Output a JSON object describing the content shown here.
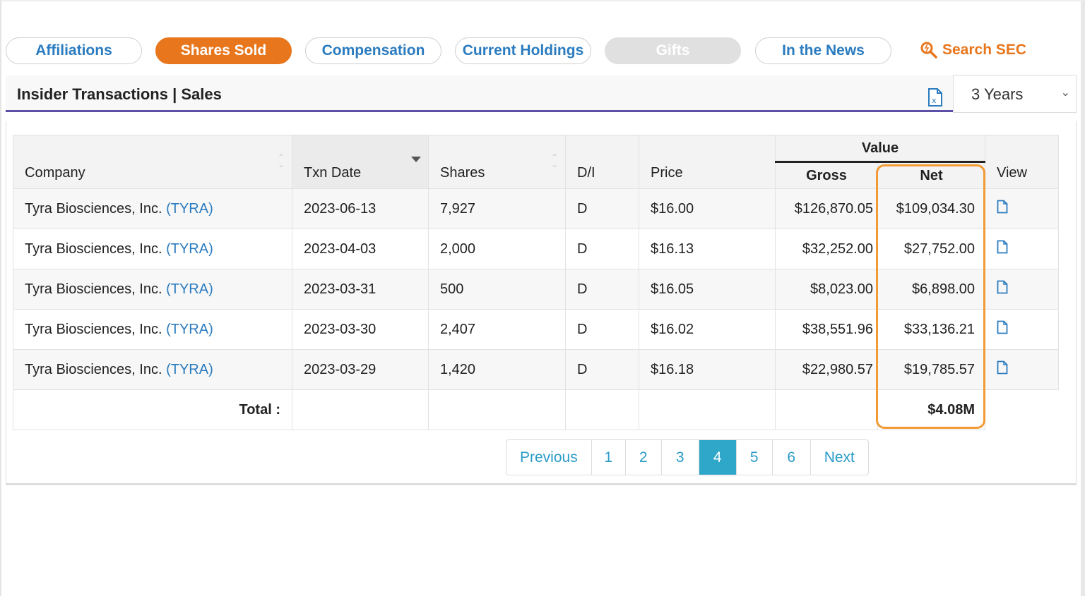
{
  "tabs": [
    {
      "label": "Affiliations",
      "state": "normal"
    },
    {
      "label": "Shares Sold",
      "state": "active"
    },
    {
      "label": "Compensation",
      "state": "normal"
    },
    {
      "label": "Current Holdings",
      "state": "normal"
    },
    {
      "label": "Gifts",
      "state": "disabled"
    },
    {
      "label": "In the News",
      "state": "normal"
    }
  ],
  "search_sec": {
    "label": "Search SEC",
    "icon": "search-icon"
  },
  "header": {
    "title": "Insider Transactions | Sales",
    "export_icon": "excel-file-icon"
  },
  "period_select": {
    "value": "3 Years"
  },
  "table": {
    "columns": {
      "company": "Company",
      "txn_date": "Txn Date",
      "shares": "Shares",
      "di": "D/I",
      "price": "Price",
      "value": "Value",
      "gross": "Gross",
      "net": "Net",
      "view": "View"
    },
    "rows": [
      {
        "company": "Tyra Biosciences, Inc.",
        "ticker": "(TYRA)",
        "date": "2023-06-13",
        "shares": "7,927",
        "di": "D",
        "price": "$16.00",
        "gross": "$126,870.05",
        "net": "$109,034.30"
      },
      {
        "company": "Tyra Biosciences, Inc.",
        "ticker": "(TYRA)",
        "date": "2023-04-03",
        "shares": "2,000",
        "di": "D",
        "price": "$16.13",
        "gross": "$32,252.00",
        "net": "$27,752.00"
      },
      {
        "company": "Tyra Biosciences, Inc.",
        "ticker": "(TYRA)",
        "date": "2023-03-31",
        "shares": "500",
        "di": "D",
        "price": "$16.05",
        "gross": "$8,023.00",
        "net": "$6,898.00"
      },
      {
        "company": "Tyra Biosciences, Inc.",
        "ticker": "(TYRA)",
        "date": "2023-03-30",
        "shares": "2,407",
        "di": "D",
        "price": "$16.02",
        "gross": "$38,551.96",
        "net": "$33,136.21"
      },
      {
        "company": "Tyra Biosciences, Inc.",
        "ticker": "(TYRA)",
        "date": "2023-03-29",
        "shares": "1,420",
        "di": "D",
        "price": "$16.18",
        "gross": "$22,980.57",
        "net": "$19,785.57"
      }
    ],
    "total_label": "Total :",
    "total_net": "$4.08M"
  },
  "pagination": {
    "previous": "Previous",
    "pages": [
      "1",
      "2",
      "3",
      "4",
      "5",
      "6"
    ],
    "current": "4",
    "next": "Next"
  },
  "colors": {
    "accent": "#e8761c",
    "link": "#2a7bbf",
    "active_page": "#2ea7c9",
    "highlight": "#f39a34",
    "header_rule": "#5b4fa8"
  }
}
